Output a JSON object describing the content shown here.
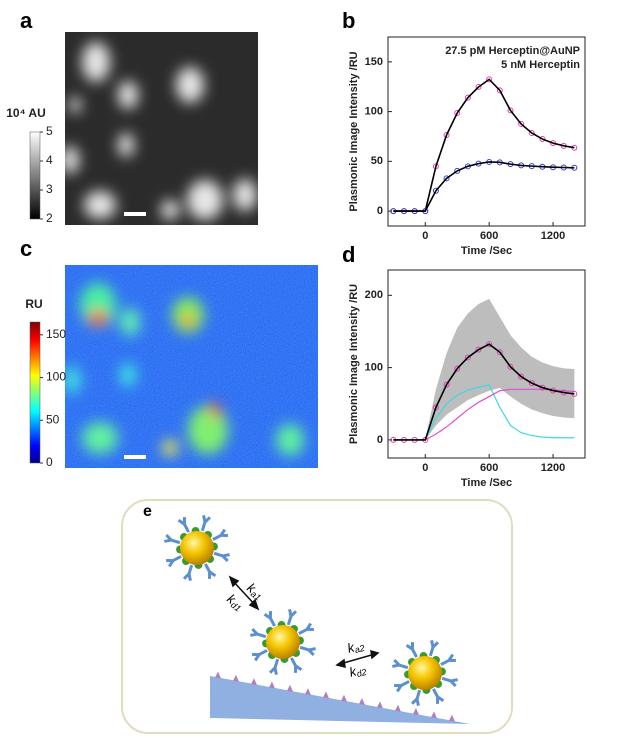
{
  "panel_labels": [
    "a",
    "b",
    "c",
    "d",
    "e"
  ],
  "colorbar_a": {
    "title": "10⁴ AU",
    "ticks": [
      2,
      3,
      4,
      5
    ],
    "range": [
      2,
      5
    ]
  },
  "colorbar_c": {
    "title": "RU",
    "ticks": [
      0,
      50,
      100,
      150
    ],
    "range": [
      0,
      165
    ]
  },
  "diagram_e": {
    "rates": [
      [
        {
          "base": "k",
          "sub": "a1"
        },
        {
          "base": "k",
          "sub": "d1"
        }
      ],
      [
        {
          "base": "k",
          "sub": "a2"
        },
        {
          "base": "k",
          "sub": "d2"
        }
      ]
    ]
  },
  "chart_data": [
    {
      "type": "line",
      "xlabel": "Time /Sec",
      "ylabel": "Plasmonic Image Intensity /RU",
      "x": [
        -300,
        -200,
        -100,
        0,
        100,
        200,
        300,
        400,
        500,
        600,
        700,
        800,
        900,
        1000,
        1100,
        1200,
        1300,
        1400
      ],
      "xlim": [
        -350,
        1500
      ],
      "xticks": [
        0,
        600,
        1200
      ],
      "ylim": [
        -15,
        175
      ],
      "yticks": [
        0,
        50,
        100,
        150
      ],
      "series": [
        {
          "name": "27.5 pM Herceptin@AuNP",
          "color": "#e040b0",
          "label_color": "#222222",
          "line_color": "#000000",
          "values": [
            0,
            0,
            0,
            0,
            45,
            76.5,
            98.6,
            114,
            124.8,
            132.4,
            121.4,
            101.2,
            87.6,
            78.5,
            72.4,
            68.3,
            65.6,
            63.7
          ]
        },
        {
          "name": "5 nM Herceptin",
          "color": "#3040c8",
          "label_color": "#2a2acc",
          "line_color": "#000000",
          "values": [
            0,
            0,
            0,
            0,
            20.4,
            32.9,
            40.4,
            45,
            47.7,
            49.4,
            49,
            47.2,
            45.9,
            45.2,
            44.6,
            44.1,
            43.8,
            43.5
          ]
        }
      ]
    },
    {
      "type": "line",
      "xlabel": "Time /Sec",
      "ylabel": "Plasmonic Image Intensity /RU",
      "x": [
        -300,
        -200,
        -100,
        0,
        100,
        200,
        300,
        400,
        500,
        600,
        700,
        800,
        900,
        1000,
        1100,
        1200,
        1300,
        1400
      ],
      "xlim": [
        -350,
        1500
      ],
      "xticks": [
        0,
        600,
        1200
      ],
      "ylim": [
        -25,
        235
      ],
      "yticks": [
        0,
        100,
        200
      ],
      "series": [
        {
          "color": "#bdbdbd",
          "values": [
            0,
            0,
            0,
            0,
            70,
            120,
            155,
            175,
            188,
            195,
            170,
            145,
            128,
            115,
            107,
            102,
            99,
            98
          ],
          "lower": [
            0,
            0,
            0,
            0,
            20,
            35,
            45,
            55,
            62,
            68,
            72,
            60,
            50,
            42,
            37,
            33,
            31,
            30
          ]
        },
        {
          "color": "#40d8e0",
          "values": [
            0,
            0,
            0,
            0,
            30,
            50,
            62,
            69,
            73,
            76,
            45,
            20,
            10,
            6,
            4,
            3,
            3,
            3
          ]
        },
        {
          "color": "#e050d0",
          "values": [
            0,
            0,
            0,
            0,
            8,
            18,
            30,
            42,
            52,
            60,
            68,
            70,
            70,
            70,
            70,
            69,
            68,
            67
          ]
        },
        {
          "color": "#e040b0",
          "line_color": "#000000",
          "values": [
            0,
            0,
            0,
            0,
            45,
            76.5,
            98.6,
            114,
            124.8,
            132.4,
            121.4,
            101.2,
            87.6,
            78.5,
            72.4,
            68.3,
            65.6,
            63.7
          ]
        }
      ]
    }
  ]
}
